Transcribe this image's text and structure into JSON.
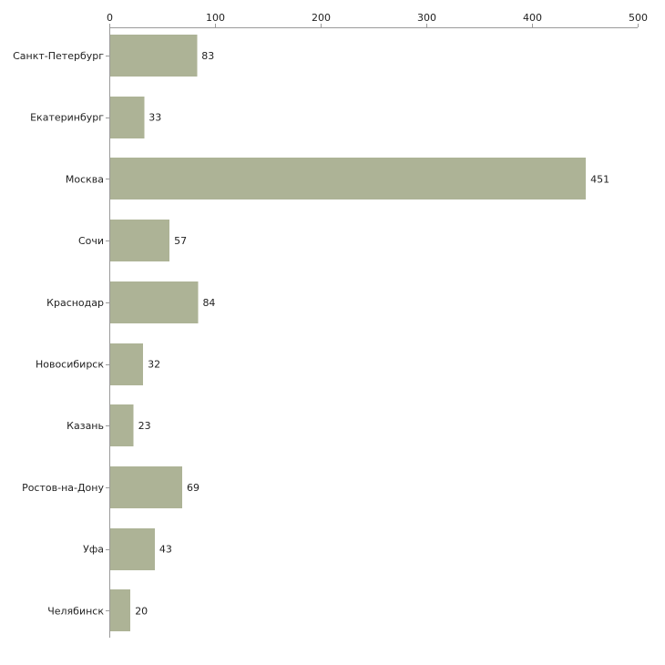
{
  "chart_data": {
    "type": "bar",
    "orientation": "horizontal",
    "title": "",
    "xlabel": "",
    "ylabel": "",
    "xlim": [
      0,
      500
    ],
    "x_ticks": [
      0,
      100,
      200,
      300,
      400,
      500
    ],
    "x_axis_position": "top",
    "grid": false,
    "legend": "none",
    "bar_color": "#adb396",
    "categories": [
      "Санкт-Петербург",
      "Екатеринбург",
      "Москва",
      "Сочи",
      "Краснодар",
      "Новосибирск",
      "Казань",
      "Ростов-на-Дону",
      "Уфа",
      "Челябинск"
    ],
    "values": [
      83,
      33,
      451,
      57,
      84,
      32,
      23,
      69,
      43,
      20
    ],
    "show_data_labels": true
  }
}
